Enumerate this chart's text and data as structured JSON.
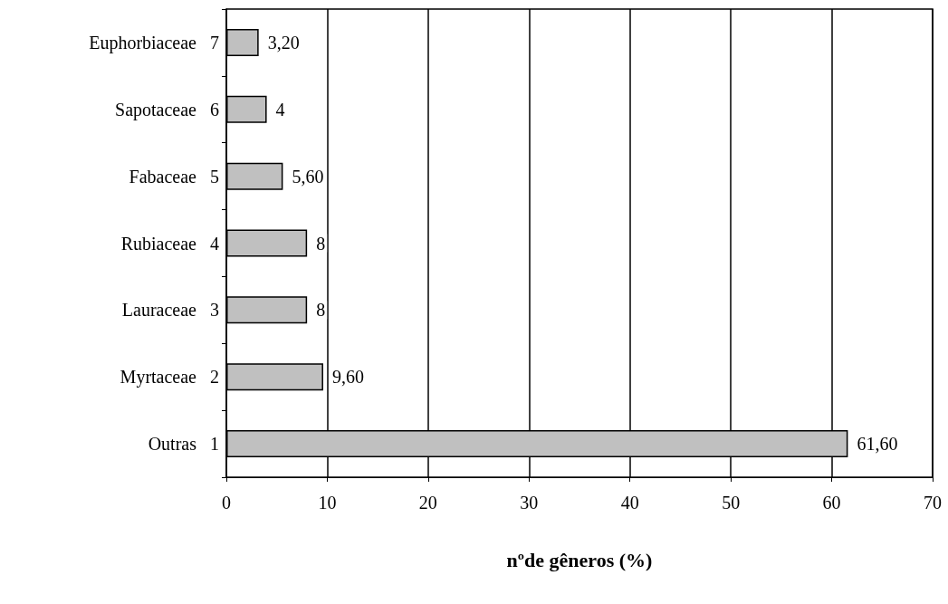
{
  "chart_data": {
    "type": "bar",
    "orientation": "horizontal",
    "xlabel": "nºde gêneros (%)",
    "categories": [
      "Euphorbiaceae   7",
      "Sapotaceae   6",
      "Fabaceae   5",
      "Rubiaceae   4",
      "Lauraceae   3",
      "Myrtaceae   2",
      "Outras   1"
    ],
    "values": [
      3.2,
      4,
      5.6,
      8,
      8,
      9.6,
      61.6
    ],
    "value_labels": [
      "3,20",
      "4",
      "5,60",
      "8",
      "8",
      "9,60",
      "61,60"
    ],
    "color": "#c0c0c0",
    "xlim": [
      0,
      70
    ],
    "xticks": [
      0,
      10,
      20,
      30,
      40,
      50,
      60,
      70
    ],
    "grid": "x"
  }
}
